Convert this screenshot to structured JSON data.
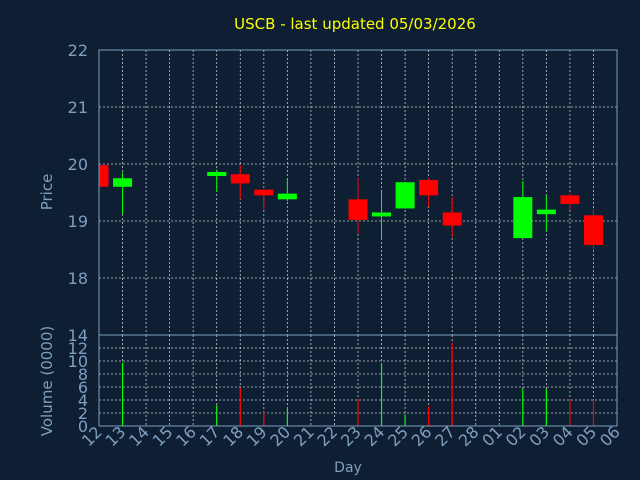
{
  "chart_data": [
    {
      "type": "candlestick",
      "title": "USCB - last updated 05/03/2026",
      "ylabel": "Price",
      "ylim": [
        17,
        22
      ],
      "yticks": [
        "22",
        "21",
        "20",
        "19",
        "18"
      ],
      "ytick_values": [
        22,
        21,
        20,
        19,
        18
      ],
      "grid": true,
      "x": [
        "12",
        "13",
        "14",
        "15",
        "16",
        "17",
        "18",
        "19",
        "20",
        "21",
        "22",
        "23",
        "24",
        "25",
        "26",
        "27",
        "28",
        "01",
        "02",
        "03",
        "04",
        "05",
        "06"
      ],
      "candles": [
        {
          "x": "12",
          "open": 19.98,
          "high": 20.0,
          "low": 19.6,
          "close": 19.6
        },
        {
          "x": "13",
          "open": 19.6,
          "high": 19.85,
          "low": 19.12,
          "close": 19.75
        },
        {
          "x": "17",
          "open": 19.8,
          "high": 19.9,
          "low": 19.52,
          "close": 19.86
        },
        {
          "x": "18",
          "open": 19.82,
          "high": 19.98,
          "low": 19.38,
          "close": 19.66
        },
        {
          "x": "19",
          "open": 19.55,
          "high": 19.55,
          "low": 19.2,
          "close": 19.45
        },
        {
          "x": "20",
          "open": 19.38,
          "high": 19.75,
          "low": 19.35,
          "close": 19.48
        },
        {
          "x": "23",
          "open": 19.38,
          "high": 19.75,
          "low": 18.78,
          "close": 19.02
        },
        {
          "x": "24",
          "open": 19.1,
          "high": 19.52,
          "low": 18.68,
          "close": 19.15
        },
        {
          "x": "25",
          "open": 19.22,
          "high": 19.68,
          "low": 19.22,
          "close": 19.68
        },
        {
          "x": "26",
          "open": 19.72,
          "high": 19.75,
          "low": 19.25,
          "close": 19.45
        },
        {
          "x": "27",
          "open": 19.15,
          "high": 19.42,
          "low": 18.72,
          "close": 18.92
        },
        {
          "x": "02",
          "open": 18.7,
          "high": 19.7,
          "low": 18.7,
          "close": 19.42
        },
        {
          "x": "03",
          "open": 19.12,
          "high": 19.45,
          "low": 18.82,
          "close": 19.2
        },
        {
          "x": "04",
          "open": 19.45,
          "high": 19.48,
          "low": 19.2,
          "close": 19.3
        },
        {
          "x": "05",
          "open": 19.1,
          "high": 19.2,
          "low": 18.48,
          "close": 18.58
        }
      ]
    },
    {
      "type": "bar",
      "ylabel": "Volume (0000)",
      "xlabel": "Day",
      "ylim": [
        0,
        14
      ],
      "yticks": [
        "14",
        "12",
        "10",
        "8",
        "6",
        "4",
        "2",
        "0"
      ],
      "ytick_values": [
        14,
        12,
        10,
        8,
        6,
        4,
        2,
        0
      ],
      "categories": [
        "12",
        "13",
        "17",
        "18",
        "19",
        "20",
        "23",
        "24",
        "25",
        "26",
        "27",
        "02",
        "03",
        "04",
        "05"
      ],
      "values": [
        0,
        9.8,
        3.2,
        5.9,
        2.2,
        2.6,
        4.2,
        9.6,
        1.8,
        3.0,
        12.8,
        5.7,
        5.7,
        4.1,
        4.1
      ],
      "direction": [
        "down",
        "up",
        "up",
        "down",
        "down",
        "up",
        "down",
        "up",
        "up",
        "down",
        "down",
        "up",
        "up",
        "down",
        "down"
      ]
    }
  ],
  "colors": {
    "background": "#0e1f33",
    "axis_text": "#7f9fbf",
    "title": "#ffff00",
    "up": "#00ff00",
    "down": "#ff0000",
    "grid": "#ffffff",
    "frame": "#7f9fbf"
  }
}
